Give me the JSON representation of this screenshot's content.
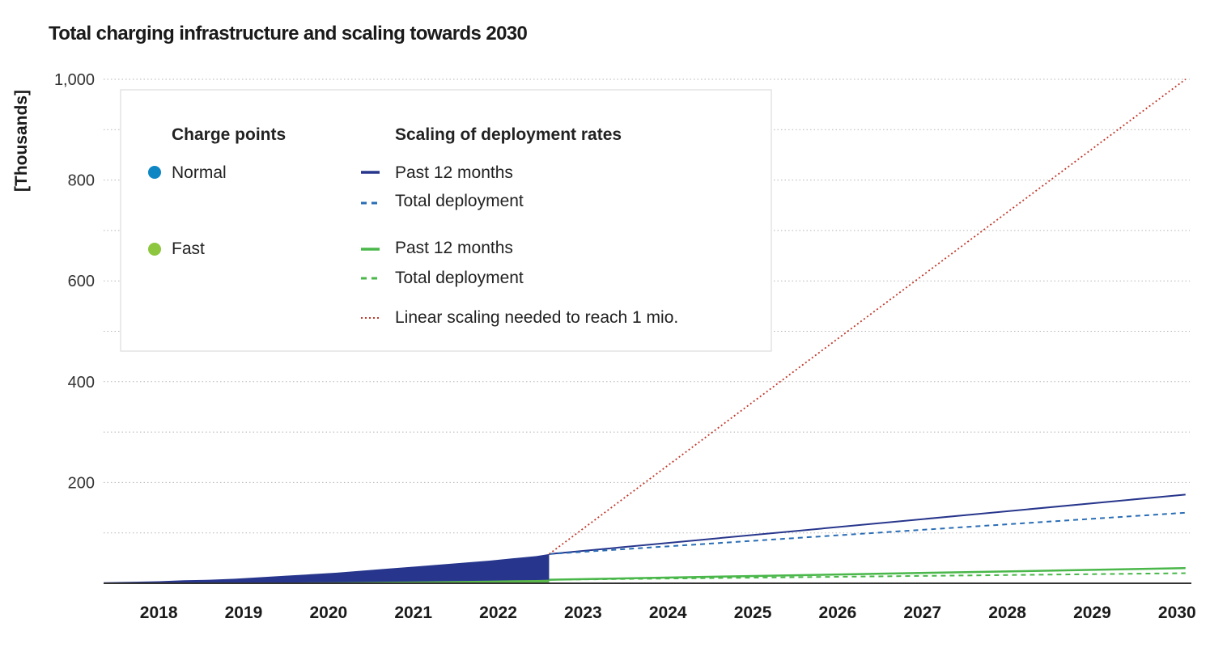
{
  "chart_data": {
    "type": "line",
    "title": "Total charging infrastructure and scaling towards 2030",
    "ylabel": "[Thousands]",
    "xlabel": "",
    "xlim": [
      2017.35,
      2030.15
    ],
    "ylim": [
      0,
      1000
    ],
    "y_ticks": [
      200,
      400,
      600,
      800,
      1000
    ],
    "y_tick_labels": [
      "200",
      "400",
      "600",
      "800",
      "1,000"
    ],
    "x_ticks": [
      2018,
      2019,
      2020,
      2021,
      2022,
      2023,
      2024,
      2025,
      2026,
      2027,
      2028,
      2029,
      2030
    ],
    "x_tick_labels": [
      "2018",
      "2019",
      "2020",
      "2021",
      "2022",
      "2023",
      "2024",
      "2025",
      "2026",
      "2027",
      "2028",
      "2029",
      "2030"
    ],
    "grid": "horizontal dotted",
    "legend_position": "top-left",
    "legend": {
      "charge_points_heading": "Charge points",
      "scaling_heading": "Scaling of deployment rates",
      "normal_label": "Normal",
      "fast_label": "Fast",
      "normal_past12": "Past 12 months",
      "normal_total": "Total deployment",
      "fast_past12": "Past 12 months",
      "fast_total": "Total deployment",
      "linear": "Linear scaling needed to reach 1 mio."
    },
    "colors": {
      "normal_area": "#27368c",
      "normal_dot": "#0e86c4",
      "normal_past12": "#27368c",
      "normal_total": "#2a6db5",
      "fast_area": "#5cb84a",
      "fast_dot": "#8dc63f",
      "fast_past12": "#49b749",
      "fast_total": "#49b749",
      "linear": "#c0392b",
      "grid": "#b5b5b5",
      "axis": "#333333"
    },
    "historical": {
      "x": [
        2017.35,
        2017.7,
        2018.0,
        2018.3,
        2018.6,
        2018.9,
        2019.2,
        2019.5,
        2019.8,
        2020.1,
        2020.4,
        2020.7,
        2021.0,
        2021.3,
        2021.6,
        2021.9,
        2022.2,
        2022.45,
        2022.6
      ],
      "normal": [
        2,
        3,
        4,
        6,
        7,
        9,
        12,
        15,
        18,
        21,
        25,
        29,
        33,
        37,
        41,
        45,
        50,
        54,
        58
      ],
      "fast": [
        0.3,
        0.4,
        0.5,
        0.6,
        0.8,
        1.0,
        1.2,
        1.5,
        1.8,
        2.1,
        2.5,
        3.0,
        3.5,
        4.0,
        4.6,
        5.2,
        6.0,
        6.5,
        7
      ]
    },
    "series": [
      {
        "name": "Past 12 months",
        "x": [
          2022.6,
          2030.1
        ],
        "values": [
          58,
          176
        ]
      },
      {
        "name": "Total deployment",
        "x": [
          2022.6,
          2030.1
        ],
        "values": [
          58,
          140
        ]
      },
      {
        "name": "Past 12 months",
        "x": [
          2022.6,
          2030.1
        ],
        "values": [
          7,
          30
        ]
      },
      {
        "name": "Total deployment",
        "x": [
          2022.6,
          2030.1
        ],
        "values": [
          7,
          20
        ]
      },
      {
        "name": "Linear scaling needed to reach 1 mio.",
        "x": [
          2022.6,
          2030.1
        ],
        "values": [
          58,
          1000
        ]
      }
    ]
  }
}
